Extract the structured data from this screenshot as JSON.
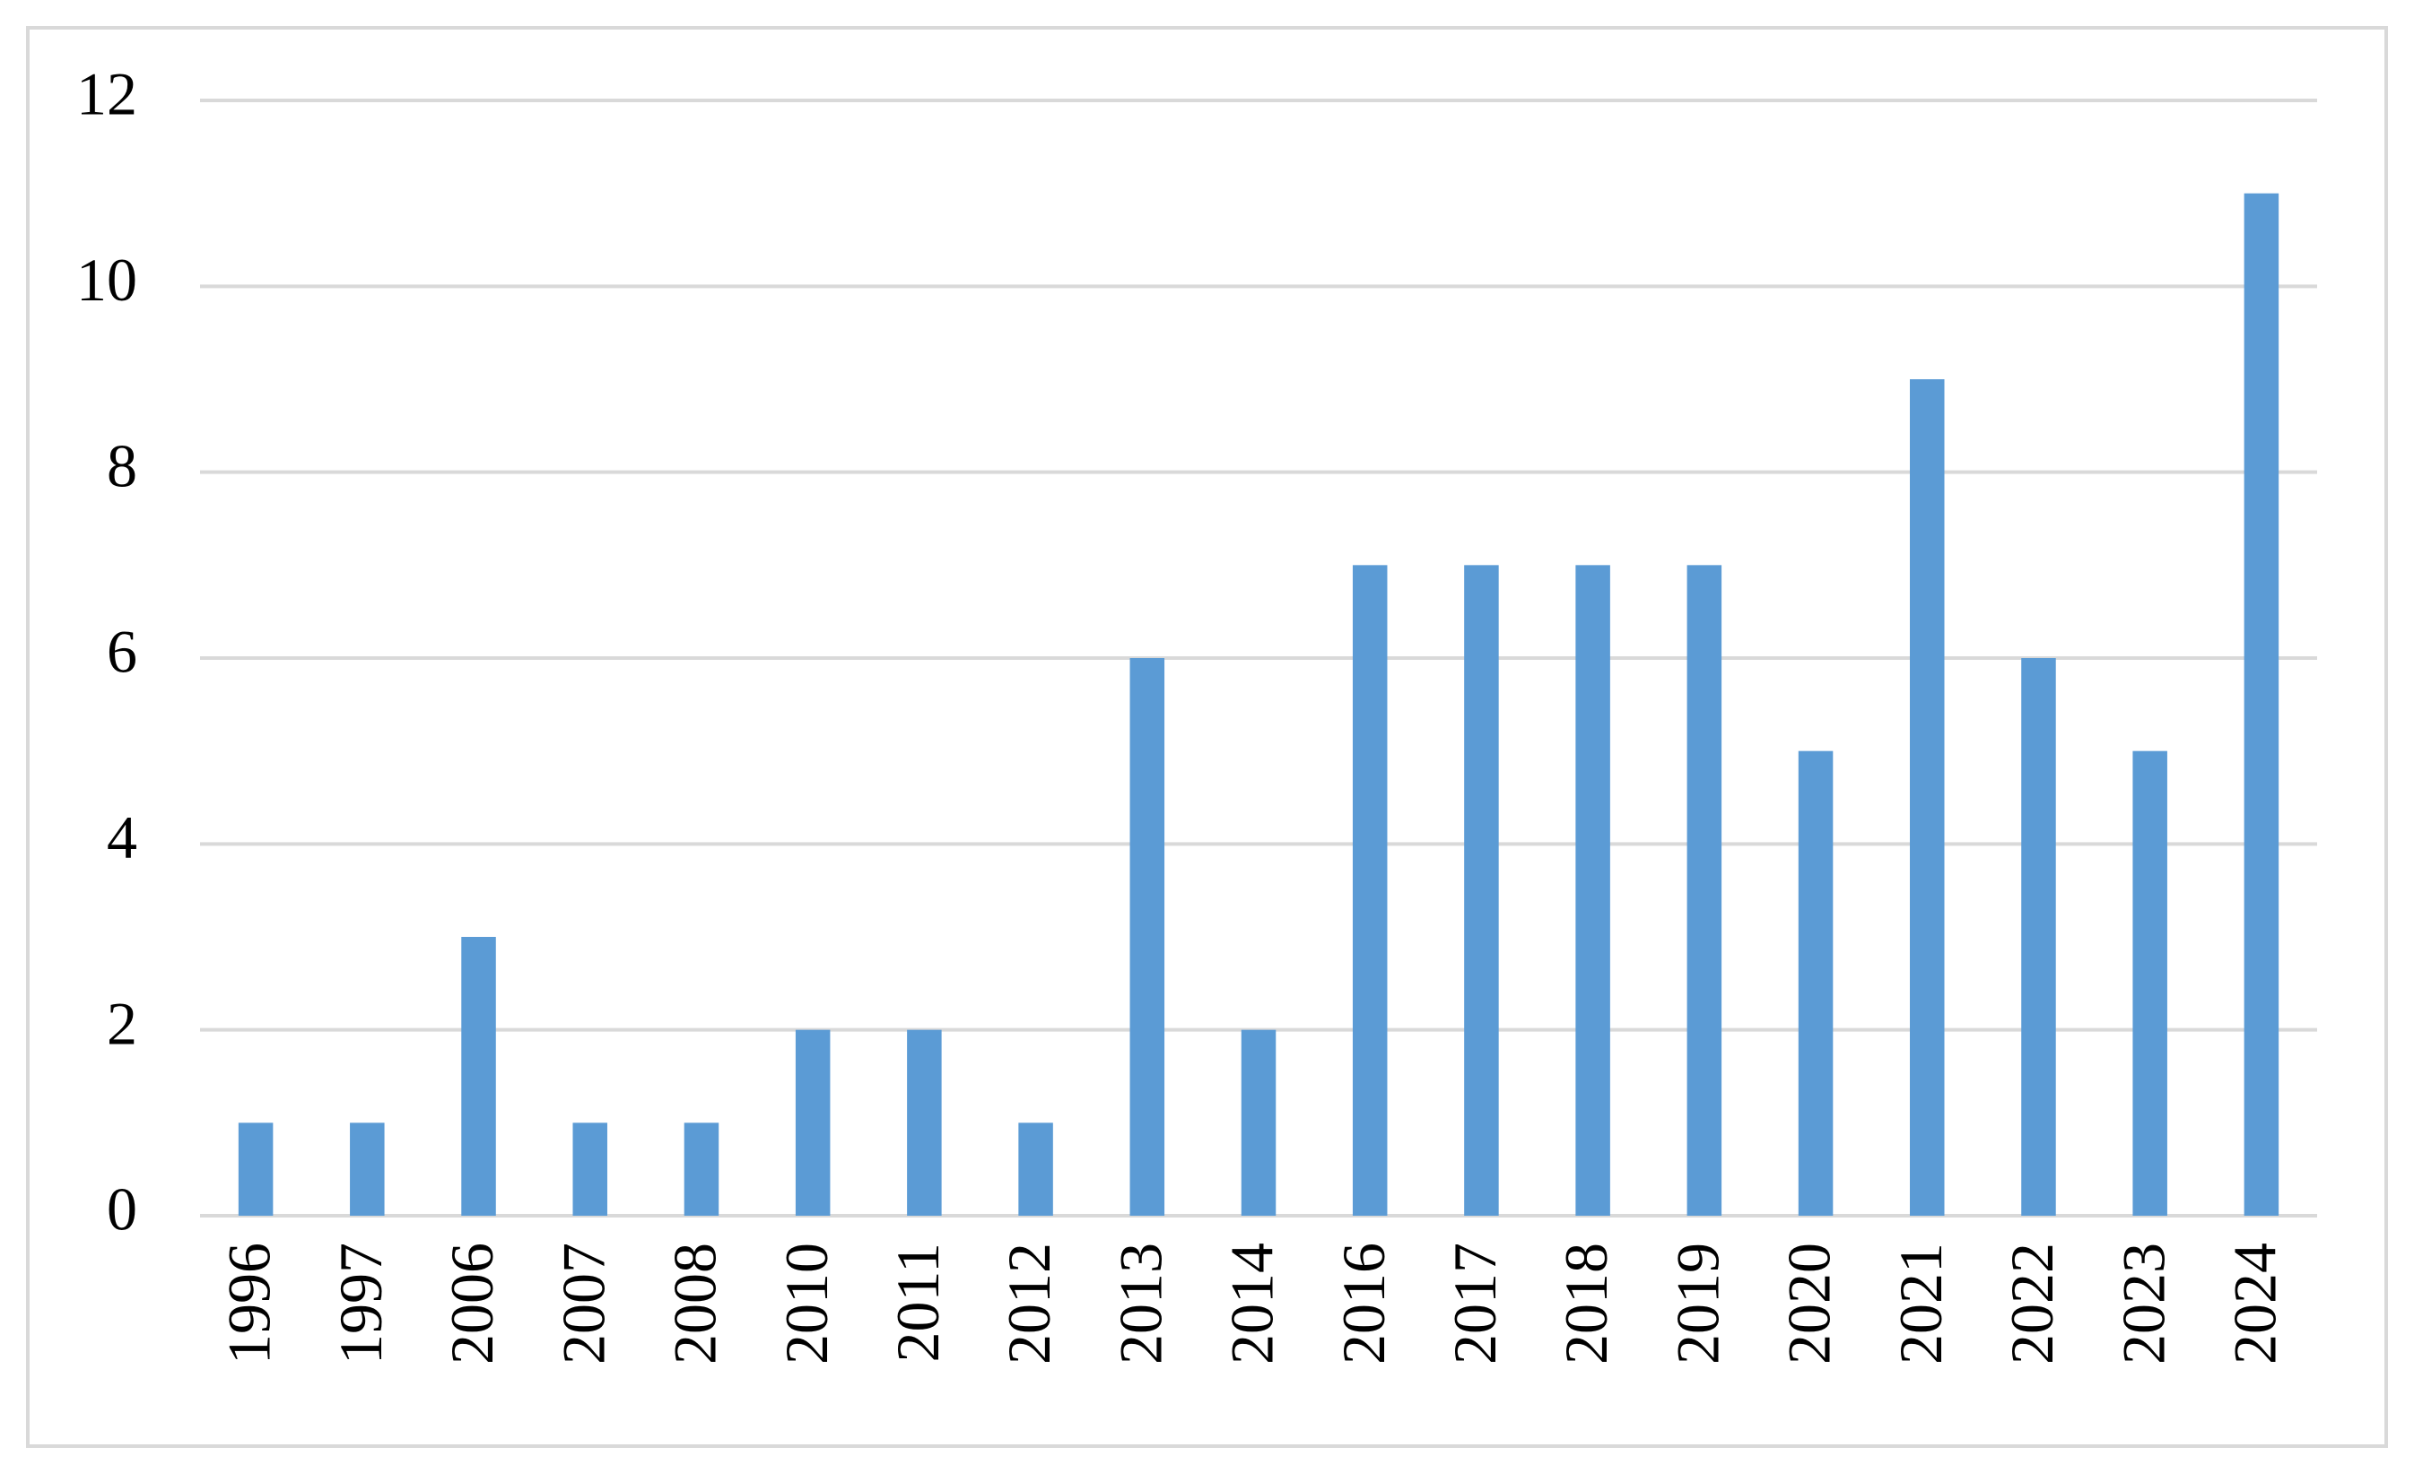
{
  "chart_data": {
    "type": "bar",
    "categories": [
      "1996",
      "1997",
      "2006",
      "2007",
      "2008",
      "2010",
      "2011",
      "2012",
      "2013",
      "2014",
      "2016",
      "2017",
      "2018",
      "2019",
      "2020",
      "2021",
      "2022",
      "2023",
      "2024"
    ],
    "values": [
      1,
      1,
      3,
      1,
      1,
      2,
      2,
      1,
      6,
      2,
      7,
      7,
      7,
      7,
      5,
      9,
      6,
      5,
      11
    ],
    "color": "#5b9bd5",
    "ylim": [
      0,
      12
    ],
    "yticks": [
      0,
      2,
      4,
      6,
      8,
      10,
      12
    ],
    "grid": true
  }
}
